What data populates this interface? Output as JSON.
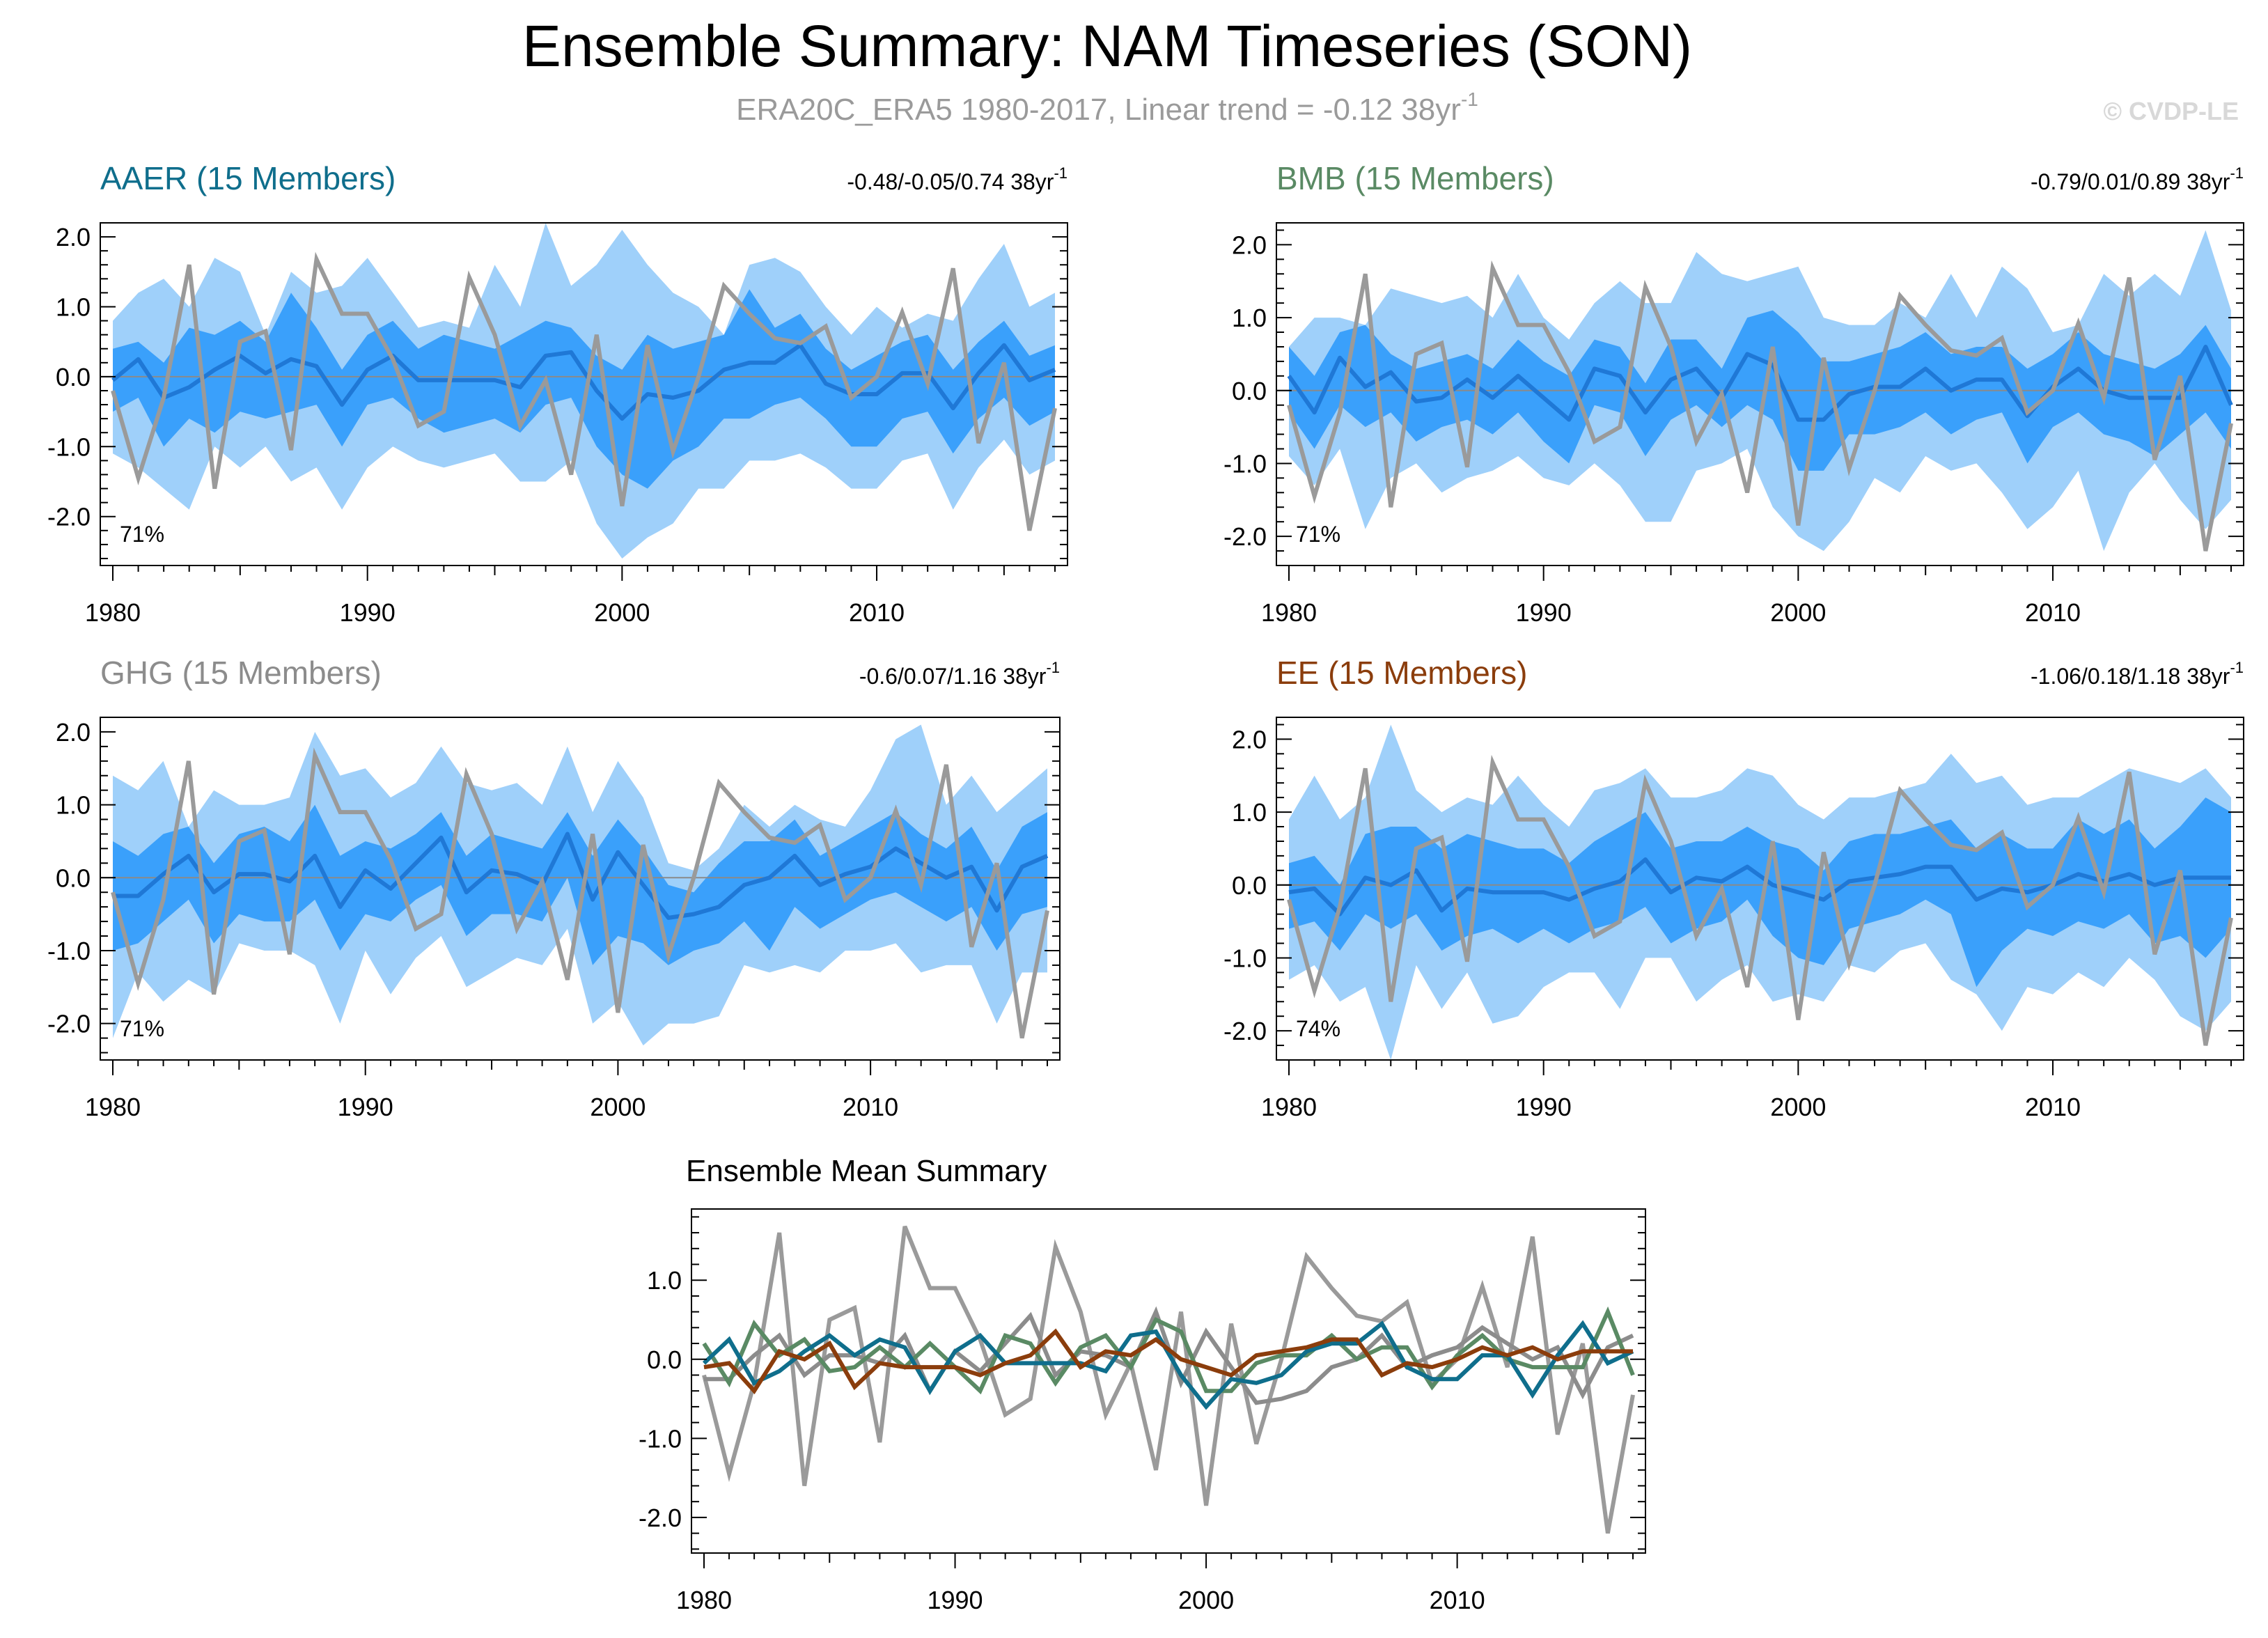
{
  "figure": {
    "title": "Ensemble Summary: NAM Timeseries (SON)",
    "subtitle_main": "ERA20C_ERA5 1980-2017, Linear trend = -0.12 38yr",
    "subtitle_sup": "-1",
    "watermark": "© CVDP-LE"
  },
  "colors": {
    "obs": "#9a9a9a",
    "band_outer": "#9fd0fa",
    "band_inner": "#3aa0fb",
    "ens_mean": "#1f78d6",
    "AAER": "#0f6e8c",
    "BMB": "#5a8a64",
    "GHG": "#8c8c8c",
    "EE": "#8b3d0c"
  },
  "chart_data": [
    {
      "type": "area",
      "name": "AAER",
      "title": "AAER (15 Members)",
      "stats": "-0.48/-0.05/0.74 38yr",
      "stats_sup": "-1",
      "pct": "71%",
      "ylim": [
        -2.7,
        2.2
      ],
      "yticks": [
        "2.0",
        "1.0",
        "0.0",
        "-1.0",
        "-2.0"
      ],
      "xticks": [
        "1980",
        "1990",
        "2000",
        "2010"
      ],
      "mean": [
        -0.05,
        0.25,
        -0.3,
        -0.15,
        0.1,
        0.3,
        0.05,
        0.25,
        0.15,
        -0.4,
        0.1,
        0.3,
        -0.05,
        -0.05,
        -0.05,
        -0.05,
        -0.15,
        0.3,
        0.35,
        -0.2,
        -0.6,
        -0.25,
        -0.3,
        -0.2,
        0.1,
        0.2,
        0.2,
        0.45,
        -0.1,
        -0.25,
        -0.25,
        0.05,
        0.05,
        -0.45,
        0.05,
        0.45,
        -0.05,
        0.1
      ],
      "inner_hi": [
        0.4,
        0.5,
        0.2,
        0.7,
        0.6,
        0.8,
        0.5,
        1.2,
        0.7,
        0.1,
        0.6,
        0.8,
        0.4,
        0.6,
        0.5,
        0.4,
        0.6,
        0.8,
        0.7,
        0.3,
        0.1,
        0.6,
        0.4,
        0.5,
        0.6,
        1.25,
        0.7,
        0.9,
        0.4,
        0.1,
        0.3,
        0.5,
        0.6,
        0.1,
        0.5,
        0.8,
        0.3,
        0.45
      ],
      "inner_lo": [
        -0.5,
        -0.3,
        -1.0,
        -0.6,
        -0.8,
        -0.5,
        -0.6,
        -0.5,
        -0.4,
        -1.0,
        -0.4,
        -0.3,
        -0.6,
        -0.8,
        -0.7,
        -0.6,
        -0.8,
        -0.4,
        -0.3,
        -1.0,
        -1.4,
        -1.6,
        -1.2,
        -1.0,
        -0.6,
        -0.6,
        -0.4,
        -0.3,
        -0.6,
        -1.0,
        -1.0,
        -0.6,
        -0.5,
        -1.1,
        -0.6,
        -0.3,
        -0.7,
        -0.5
      ],
      "outer_hi": [
        0.8,
        1.2,
        1.4,
        1.0,
        1.7,
        1.5,
        0.6,
        1.5,
        1.2,
        1.3,
        1.7,
        1.2,
        0.7,
        0.8,
        0.7,
        1.6,
        1.0,
        2.2,
        1.3,
        1.6,
        2.1,
        1.6,
        1.2,
        1.0,
        0.6,
        1.6,
        1.7,
        1.5,
        1.0,
        0.6,
        1.0,
        0.7,
        0.9,
        0.8,
        1.4,
        1.9,
        1.0,
        1.2
      ],
      "outer_lo": [
        -1.1,
        -1.3,
        -1.6,
        -1.9,
        -1.0,
        -1.3,
        -1.0,
        -1.5,
        -1.3,
        -1.9,
        -1.3,
        -1.0,
        -1.2,
        -1.3,
        -1.2,
        -1.1,
        -1.5,
        -1.5,
        -1.2,
        -2.1,
        -2.6,
        -2.3,
        -2.1,
        -1.6,
        -1.6,
        -1.2,
        -1.2,
        -1.1,
        -1.3,
        -1.6,
        -1.6,
        -1.2,
        -1.1,
        -1.9,
        -1.3,
        -0.9,
        -1.4,
        -1.2
      ],
      "ens_mean_summary": [
        -0.05,
        0.25,
        -0.3,
        -0.15,
        0.1,
        0.3,
        0.05,
        0.25,
        0.15,
        -0.4,
        0.1,
        0.3,
        -0.05,
        -0.05,
        -0.05,
        -0.05,
        -0.15,
        0.3,
        0.35,
        -0.2,
        -0.6,
        -0.25,
        -0.3,
        -0.2,
        0.1,
        0.2,
        0.2,
        0.45,
        -0.1,
        -0.25,
        -0.25,
        0.05,
        0.05,
        -0.45,
        0.05,
        0.45,
        -0.05,
        0.1
      ]
    },
    {
      "type": "area",
      "name": "BMB",
      "title": "BMB (15 Members)",
      "stats": "-0.79/0.01/0.89 38yr",
      "stats_sup": "-1",
      "pct": "71%",
      "ylim": [
        -2.4,
        2.3
      ],
      "yticks": [
        "2.0",
        "1.0",
        "0.0",
        "-1.0",
        "-2.0"
      ],
      "xticks": [
        "1980",
        "1990",
        "2000",
        "2010"
      ],
      "mean": [
        0.2,
        -0.3,
        0.45,
        0.05,
        0.25,
        -0.15,
        -0.1,
        0.15,
        -0.1,
        0.2,
        -0.1,
        -0.4,
        0.3,
        0.2,
        -0.3,
        0.15,
        0.3,
        -0.1,
        0.5,
        0.35,
        -0.4,
        -0.4,
        -0.05,
        0.05,
        0.05,
        0.3,
        0.0,
        0.15,
        0.15,
        -0.35,
        0.05,
        0.3,
        0.0,
        -0.1,
        -0.1,
        -0.1,
        0.6,
        -0.2
      ],
      "inner_hi": [
        0.6,
        0.2,
        0.8,
        0.9,
        0.5,
        0.3,
        0.4,
        0.5,
        0.3,
        0.7,
        0.4,
        0.2,
        0.7,
        0.6,
        0.1,
        0.7,
        0.7,
        0.3,
        1.0,
        1.1,
        0.8,
        0.4,
        0.4,
        0.5,
        0.6,
        0.8,
        0.5,
        0.6,
        0.6,
        0.3,
        0.5,
        0.8,
        0.5,
        0.4,
        0.3,
        0.5,
        0.9,
        0.3
      ],
      "inner_lo": [
        -0.3,
        -0.8,
        -0.2,
        -0.5,
        -0.3,
        -0.7,
        -0.5,
        -0.4,
        -0.6,
        -0.3,
        -0.7,
        -1.0,
        -0.2,
        -0.3,
        -0.9,
        -0.4,
        -0.2,
        -0.5,
        -0.2,
        -0.4,
        -1.1,
        -1.1,
        -0.6,
        -0.6,
        -0.5,
        -0.3,
        -0.6,
        -0.4,
        -0.3,
        -1.0,
        -0.5,
        -0.3,
        -0.6,
        -0.7,
        -0.9,
        -0.6,
        -0.3,
        -0.8
      ],
      "outer_hi": [
        0.6,
        1.0,
        1.0,
        0.9,
        1.4,
        1.3,
        1.2,
        1.3,
        1.0,
        1.6,
        1.0,
        0.7,
        1.2,
        1.5,
        1.2,
        1.2,
        1.9,
        1.6,
        1.5,
        1.6,
        1.7,
        1.0,
        0.9,
        0.9,
        1.2,
        1.0,
        1.6,
        1.0,
        1.7,
        1.4,
        0.8,
        0.9,
        1.6,
        1.3,
        1.6,
        1.3,
        2.2,
        1.1
      ],
      "outer_lo": [
        -0.9,
        -1.3,
        -0.8,
        -1.9,
        -1.2,
        -1.0,
        -1.4,
        -1.2,
        -1.1,
        -0.9,
        -1.2,
        -1.3,
        -1.0,
        -1.3,
        -1.8,
        -1.8,
        -1.1,
        -1.0,
        -0.8,
        -1.6,
        -2.0,
        -2.2,
        -1.8,
        -1.2,
        -1.4,
        -0.9,
        -1.1,
        -1.0,
        -1.4,
        -1.9,
        -1.6,
        -1.1,
        -2.2,
        -1.4,
        -1.0,
        -1.5,
        -1.9,
        -1.5
      ],
      "ens_mean_summary": [
        0.2,
        -0.3,
        0.45,
        0.05,
        0.25,
        -0.15,
        -0.1,
        0.15,
        -0.1,
        0.2,
        -0.1,
        -0.4,
        0.3,
        0.2,
        -0.3,
        0.15,
        0.3,
        -0.1,
        0.5,
        0.35,
        -0.4,
        -0.4,
        -0.05,
        0.05,
        0.05,
        0.3,
        0.0,
        0.15,
        0.15,
        -0.35,
        0.05,
        0.3,
        0.0,
        -0.1,
        -0.1,
        -0.1,
        0.6,
        -0.2
      ]
    },
    {
      "type": "area",
      "name": "GHG",
      "title": "GHG (15 Members)",
      "stats": "-0.6/0.07/1.16 38yr",
      "stats_sup": "-1",
      "pct": "71%",
      "ylim": [
        -2.5,
        2.2
      ],
      "yticks": [
        "2.0",
        "1.0",
        "0.0",
        "-1.0",
        "-2.0"
      ],
      "xticks": [
        "1980",
        "1990",
        "2000",
        "2010"
      ],
      "mean": [
        -0.25,
        -0.25,
        0.05,
        0.3,
        -0.2,
        0.05,
        0.05,
        -0.05,
        0.3,
        -0.4,
        0.1,
        -0.15,
        0.2,
        0.55,
        -0.2,
        0.1,
        0.05,
        -0.1,
        0.6,
        -0.3,
        0.35,
        -0.1,
        -0.55,
        -0.5,
        -0.4,
        -0.1,
        0.0,
        0.3,
        -0.1,
        0.05,
        0.15,
        0.4,
        0.2,
        0.0,
        0.15,
        -0.45,
        0.15,
        0.3
      ],
      "inner_hi": [
        0.5,
        0.3,
        0.6,
        0.7,
        0.2,
        0.6,
        0.7,
        0.5,
        1.0,
        0.3,
        0.5,
        0.4,
        0.6,
        0.9,
        0.3,
        0.6,
        0.5,
        0.4,
        0.9,
        0.3,
        0.8,
        0.4,
        -0.1,
        -0.2,
        0.2,
        0.5,
        0.5,
        0.8,
        0.3,
        0.5,
        0.7,
        0.9,
        0.6,
        0.4,
        0.7,
        0.1,
        0.7,
        0.9
      ],
      "inner_lo": [
        -1.0,
        -0.9,
        -0.6,
        -0.3,
        -0.9,
        -0.5,
        -0.6,
        -0.6,
        -0.3,
        -1.0,
        -0.5,
        -0.6,
        -0.3,
        -0.1,
        -0.8,
        -0.5,
        -0.5,
        -0.6,
        0.0,
        -1.2,
        -0.8,
        -0.9,
        -1.2,
        -1.0,
        -0.9,
        -0.6,
        -1.0,
        -0.4,
        -0.7,
        -0.5,
        -0.3,
        -0.2,
        -0.4,
        -0.6,
        -0.4,
        -1.0,
        -0.5,
        -0.4
      ],
      "outer_hi": [
        1.4,
        1.2,
        1.6,
        0.7,
        1.2,
        1.0,
        1.0,
        1.1,
        2.0,
        1.4,
        1.5,
        1.1,
        1.3,
        1.8,
        1.3,
        1.2,
        1.3,
        1.0,
        1.8,
        0.9,
        1.6,
        1.1,
        0.2,
        0.1,
        0.4,
        1.0,
        0.7,
        1.0,
        0.8,
        0.7,
        1.2,
        1.9,
        2.1,
        1.0,
        1.4,
        0.9,
        1.2,
        1.5
      ],
      "outer_lo": [
        -2.2,
        -1.3,
        -1.7,
        -1.4,
        -1.6,
        -0.9,
        -1.0,
        -1.0,
        -1.2,
        -2.0,
        -1.0,
        -1.6,
        -1.1,
        -0.8,
        -1.5,
        -1.3,
        -1.1,
        -1.2,
        -0.7,
        -2.0,
        -1.7,
        -2.3,
        -2.0,
        -2.0,
        -1.9,
        -1.2,
        -1.3,
        -1.2,
        -1.3,
        -1.0,
        -1.0,
        -0.9,
        -1.3,
        -1.2,
        -1.2,
        -2.0,
        -1.3,
        -1.3
      ],
      "ens_mean_summary": [
        -0.25,
        -0.25,
        0.05,
        0.3,
        -0.2,
        0.05,
        0.05,
        -0.05,
        0.3,
        -0.4,
        0.1,
        -0.15,
        0.2,
        0.55,
        -0.2,
        0.1,
        0.05,
        -0.1,
        0.6,
        -0.3,
        0.35,
        -0.1,
        -0.55,
        -0.5,
        -0.4,
        -0.1,
        0.0,
        0.3,
        -0.1,
        0.05,
        0.15,
        0.4,
        0.2,
        0.0,
        0.15,
        -0.45,
        0.15,
        0.3
      ]
    },
    {
      "type": "area",
      "name": "EE",
      "title": "EE (15 Members)",
      "stats": "-1.06/0.18/1.18 38yr",
      "stats_sup": "-1",
      "pct": "74%",
      "ylim": [
        -2.4,
        2.3
      ],
      "yticks": [
        "2.0",
        "1.0",
        "0.0",
        "-1.0",
        "-2.0"
      ],
      "xticks": [
        "1980",
        "1990",
        "2000",
        "2010"
      ],
      "mean": [
        -0.1,
        -0.05,
        -0.4,
        0.1,
        0.0,
        0.2,
        -0.35,
        -0.05,
        -0.1,
        -0.1,
        -0.1,
        -0.2,
        -0.05,
        0.05,
        0.35,
        -0.1,
        0.1,
        0.05,
        0.25,
        0.0,
        -0.1,
        -0.2,
        0.05,
        0.1,
        0.15,
        0.25,
        0.25,
        -0.2,
        -0.05,
        -0.1,
        0.0,
        0.15,
        0.05,
        0.15,
        0.0,
        0.1,
        0.1,
        0.1
      ],
      "inner_hi": [
        0.3,
        0.4,
        0.0,
        0.7,
        0.8,
        0.8,
        0.5,
        0.7,
        0.6,
        0.5,
        0.5,
        0.3,
        0.6,
        0.8,
        1.0,
        0.5,
        0.6,
        0.6,
        0.8,
        0.6,
        0.5,
        0.2,
        0.6,
        0.7,
        0.7,
        0.8,
        0.9,
        0.5,
        0.7,
        0.5,
        0.5,
        0.9,
        0.7,
        0.9,
        0.5,
        0.8,
        1.2,
        1.0
      ],
      "inner_lo": [
        -0.6,
        -0.5,
        -0.9,
        -0.4,
        -0.6,
        -0.4,
        -0.9,
        -0.7,
        -0.6,
        -0.8,
        -0.6,
        -0.8,
        -0.6,
        -0.5,
        -0.3,
        -0.8,
        -0.6,
        -0.5,
        -0.2,
        -0.7,
        -1.0,
        -1.1,
        -0.6,
        -0.5,
        -0.4,
        -0.2,
        -0.4,
        -1.4,
        -0.9,
        -0.6,
        -0.7,
        -0.5,
        -0.6,
        -0.4,
        -0.8,
        -0.7,
        -1.0,
        -0.6
      ],
      "outer_hi": [
        0.9,
        1.5,
        0.9,
        1.2,
        2.2,
        1.3,
        1.0,
        1.2,
        1.1,
        1.5,
        1.1,
        0.8,
        1.3,
        1.4,
        1.6,
        1.2,
        1.2,
        1.3,
        1.6,
        1.5,
        1.1,
        0.9,
        1.2,
        1.2,
        1.3,
        1.4,
        1.8,
        1.4,
        1.5,
        1.1,
        1.2,
        1.2,
        1.4,
        1.6,
        1.5,
        1.4,
        1.6,
        1.2
      ],
      "outer_lo": [
        -1.3,
        -1.1,
        -1.6,
        -1.4,
        -2.4,
        -1.1,
        -1.7,
        -1.2,
        -1.9,
        -1.8,
        -1.4,
        -1.2,
        -1.2,
        -1.7,
        -1.0,
        -1.0,
        -1.6,
        -1.3,
        -1.1,
        -1.6,
        -1.5,
        -1.6,
        -1.1,
        -1.2,
        -0.9,
        -0.8,
        -1.3,
        -1.5,
        -2.0,
        -1.4,
        -1.5,
        -1.2,
        -1.4,
        -1.0,
        -1.3,
        -1.8,
        -2.0,
        -1.6
      ],
      "ens_mean_summary": [
        -0.1,
        -0.05,
        -0.4,
        0.1,
        0.0,
        0.2,
        -0.35,
        -0.05,
        -0.1,
        -0.1,
        -0.1,
        -0.2,
        -0.05,
        0.05,
        0.35,
        -0.1,
        0.1,
        0.05,
        0.25,
        0.0,
        -0.1,
        -0.2,
        0.05,
        0.1,
        0.15,
        0.25,
        0.25,
        -0.2,
        -0.05,
        -0.1,
        0.0,
        0.15,
        0.05,
        0.15,
        0.0,
        0.1,
        0.1,
        0.1
      ]
    },
    {
      "type": "line",
      "name": "Summary",
      "title": "Ensemble Mean Summary",
      "ylim": [
        -2.45,
        1.9
      ],
      "yticks": [
        "1.0",
        "0.0",
        "-1.0",
        "-2.0"
      ],
      "xticks": [
        "1980",
        "1990",
        "2000",
        "2010"
      ],
      "series_order": [
        "GHG",
        "BMB",
        "AAER",
        "EE"
      ]
    }
  ],
  "observed": {
    "x_start": 1980,
    "x_end": 2017,
    "values": [
      -0.2,
      -1.45,
      -0.3,
      1.6,
      -1.6,
      0.5,
      0.65,
      -1.05,
      1.68,
      0.9,
      0.9,
      0.25,
      -0.7,
      -0.5,
      1.42,
      0.6,
      -0.7,
      -0.05,
      -1.4,
      0.6,
      -1.85,
      0.45,
      -1.07,
      0.0,
      1.3,
      0.9,
      0.55,
      0.48,
      0.72,
      -0.3,
      0.0,
      0.92,
      -0.1,
      1.55,
      -0.95,
      0.2,
      -2.2,
      -0.45
    ]
  }
}
